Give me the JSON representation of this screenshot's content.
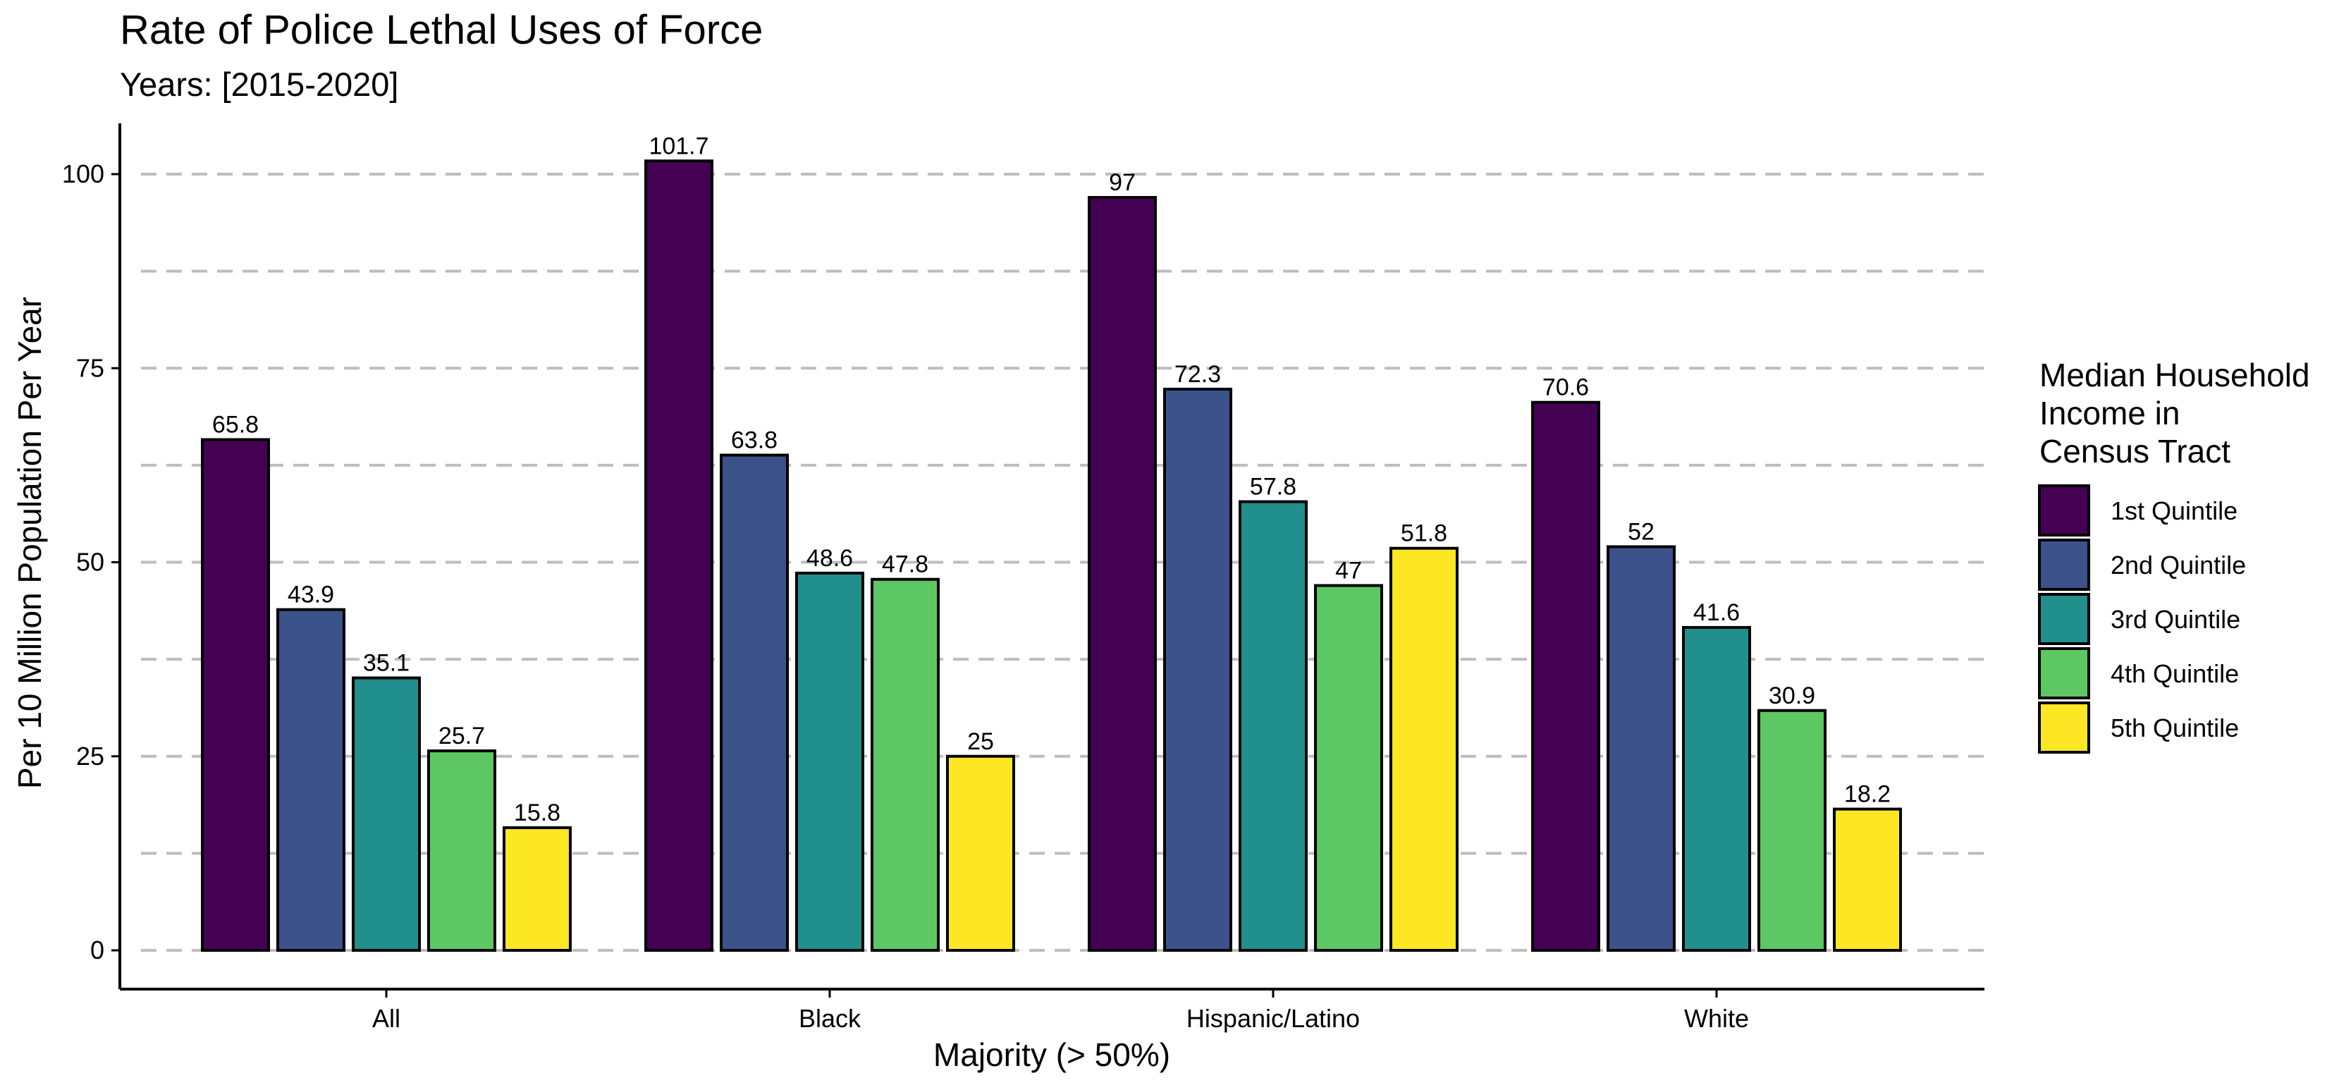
{
  "chart_data": {
    "type": "bar",
    "title": "Rate of Police Lethal Uses of Force",
    "subtitle": "Years: [2015-2020]",
    "xlabel": "Majority (> 50%)",
    "ylabel": "Per 10 Million Population Per Year",
    "ylim": [
      0,
      105
    ],
    "yticks": [
      0,
      25,
      50,
      75,
      100
    ],
    "grid": "horizontal dashed",
    "categories": [
      "All",
      "Black",
      "Hispanic/Latino",
      "White"
    ],
    "legend": {
      "title_lines": [
        "Median Household",
        "Income in",
        "Census Tract"
      ],
      "position": "right"
    },
    "series": [
      {
        "name": "1st Quintile",
        "color": "#440154",
        "values": [
          65.8,
          101.7,
          97,
          70.6
        ]
      },
      {
        "name": "2nd Quintile",
        "color": "#3B528B",
        "values": [
          43.9,
          63.8,
          72.3,
          52
        ]
      },
      {
        "name": "3rd Quintile",
        "color": "#21908C",
        "values": [
          35.1,
          48.6,
          57.8,
          41.6
        ]
      },
      {
        "name": "4th Quintile",
        "color": "#5DC863",
        "values": [
          25.7,
          47.8,
          47,
          30.9
        ]
      },
      {
        "name": "5th Quintile",
        "color": "#FDE725",
        "values": [
          15.8,
          25,
          51.8,
          18.2
        ]
      }
    ]
  }
}
